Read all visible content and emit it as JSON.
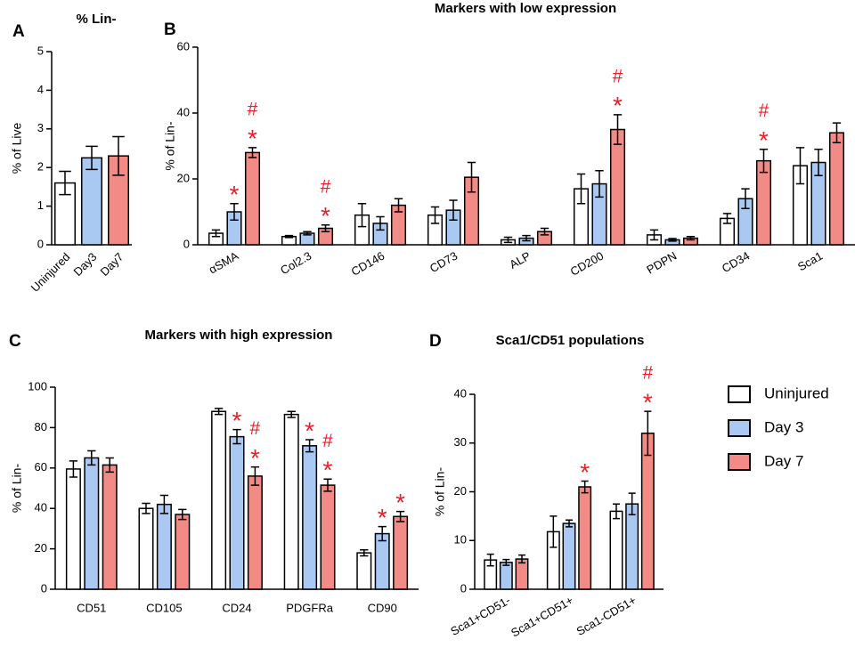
{
  "chart_data": [
    {
      "type": "bar",
      "panel": "A",
      "title": "% Lin-",
      "ylabel": "% of Live",
      "categories": [
        "Uninjured",
        "Day3",
        "Day7"
      ],
      "values": [
        1.6,
        2.25,
        2.3
      ],
      "errors": [
        0.3,
        0.3,
        0.5
      ],
      "colors": [
        "#ffffff",
        "#a9c9f2",
        "#f28b86"
      ],
      "ylim": [
        0,
        5
      ],
      "yticks": [
        0,
        1,
        2,
        3,
        4,
        5
      ]
    },
    {
      "type": "bar",
      "panel": "B",
      "title": "Markers with low expression",
      "ylabel": "% of Lin-",
      "categories": [
        "αSMA",
        "Col2.3",
        "CD146",
        "CD73",
        "ALP",
        "CD200",
        "PDPN",
        "CD34",
        "Sca1"
      ],
      "annotation_color": "#ee1c25",
      "series": [
        {
          "name": "Uninjured",
          "color": "#ffffff",
          "values": [
            3.5,
            2.5,
            9,
            9,
            1.5,
            17,
            3,
            8,
            24
          ],
          "errors": [
            1,
            0.3,
            3.5,
            2.5,
            0.8,
            4.5,
            1.5,
            1.5,
            5.5
          ]
        },
        {
          "name": "Day 3",
          "color": "#a9c9f2",
          "values": [
            10,
            3.5,
            6.5,
            10.5,
            2,
            18.5,
            1.5,
            14,
            25
          ],
          "errors": [
            2.5,
            0.5,
            2,
            3,
            0.8,
            4,
            0.4,
            3,
            4
          ],
          "annotations": [
            [
              "*"
            ],
            [],
            [],
            [],
            [],
            [],
            [],
            [],
            []
          ]
        },
        {
          "name": "Day 7",
          "color": "#f28b86",
          "values": [
            28,
            5,
            12,
            20.5,
            4,
            35,
            2,
            25.5,
            34
          ],
          "errors": [
            1.5,
            1,
            2,
            4.5,
            1,
            4.5,
            0.5,
            3.5,
            3
          ],
          "annotations": [
            [
              "*",
              "#"
            ],
            [
              "*",
              "#"
            ],
            [],
            [],
            [],
            [
              "*",
              "#"
            ],
            [],
            [
              "*",
              "#"
            ],
            []
          ]
        }
      ],
      "ylim": [
        0,
        60
      ],
      "yticks": [
        0,
        20,
        40,
        60
      ]
    },
    {
      "type": "bar",
      "panel": "C",
      "title": "Markers with high expression",
      "ylabel": "% of Lin-",
      "categories": [
        "CD51",
        "CD105",
        "CD24",
        "PDGFRa",
        "CD90"
      ],
      "annotation_color": "#ee1c25",
      "series": [
        {
          "name": "Uninjured",
          "color": "#ffffff",
          "values": [
            59.5,
            40,
            88,
            86.5,
            18
          ],
          "errors": [
            4,
            2.5,
            1.5,
            1.5,
            1.5
          ]
        },
        {
          "name": "Day 3",
          "color": "#a9c9f2",
          "values": [
            65,
            42,
            75.5,
            71,
            27.5
          ],
          "errors": [
            3.5,
            4.5,
            3.5,
            3,
            3.5
          ],
          "annotations": [
            [],
            [],
            [
              "*"
            ],
            [
              "*"
            ],
            [
              "*"
            ]
          ]
        },
        {
          "name": "Day 7",
          "color": "#f28b86",
          "values": [
            61.5,
            37,
            56,
            51.5,
            36
          ],
          "errors": [
            3.5,
            2.5,
            4.5,
            3,
            2.5
          ],
          "annotations": [
            [],
            [],
            [
              "*",
              "#"
            ],
            [
              "*",
              "#"
            ],
            [
              "*"
            ]
          ]
        }
      ],
      "ylim": [
        0,
        100
      ],
      "yticks": [
        0,
        20,
        40,
        60,
        80,
        100
      ]
    },
    {
      "type": "bar",
      "panel": "D",
      "title": "Sca1/CD51 populations",
      "ylabel": "% of Lin-",
      "categories": [
        "Sca1+CD51-",
        "Sca1+CD51+",
        "Sca1-CD51+"
      ],
      "annotation_color": "#ee1c25",
      "legend": "right",
      "series": [
        {
          "name": "Uninjured",
          "color": "#ffffff",
          "values": [
            6,
            11.8,
            16
          ],
          "errors": [
            1.2,
            3.2,
            1.5
          ]
        },
        {
          "name": "Day 3",
          "color": "#a9c9f2",
          "values": [
            5.5,
            13.5,
            17.5
          ],
          "errors": [
            0.6,
            0.7,
            2.2
          ]
        },
        {
          "name": "Day 7",
          "color": "#f28b86",
          "values": [
            6.2,
            21,
            32
          ],
          "errors": [
            0.8,
            1.2,
            4.5
          ],
          "annotations": [
            [],
            [
              "*"
            ],
            [
              "*",
              "#"
            ]
          ]
        }
      ],
      "ylim": [
        0,
        40
      ],
      "yticks": [
        0,
        10,
        20,
        30,
        40
      ]
    }
  ]
}
